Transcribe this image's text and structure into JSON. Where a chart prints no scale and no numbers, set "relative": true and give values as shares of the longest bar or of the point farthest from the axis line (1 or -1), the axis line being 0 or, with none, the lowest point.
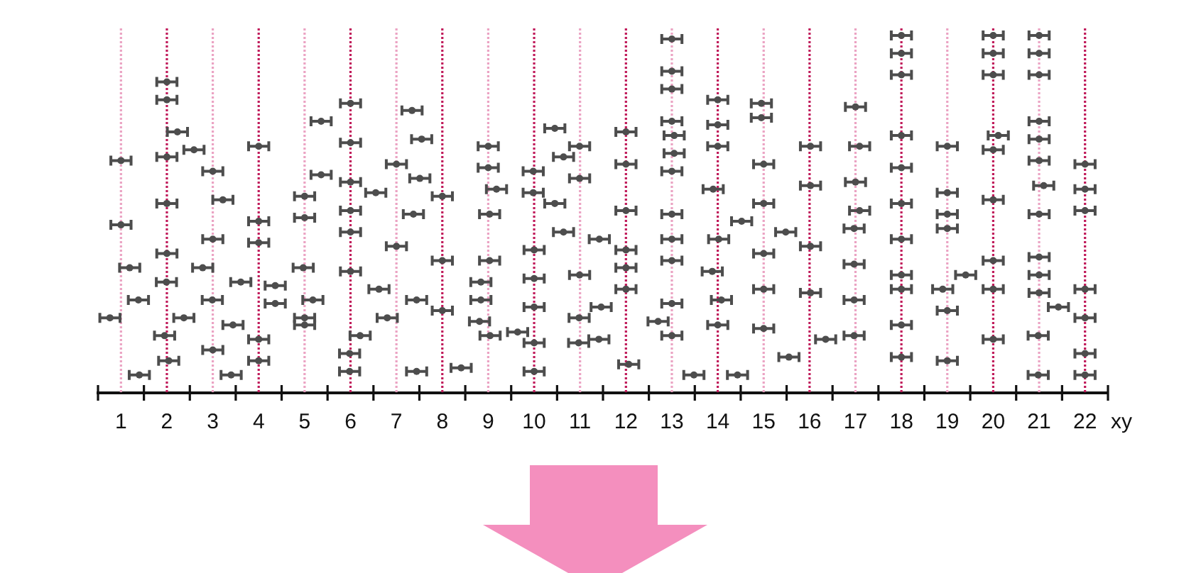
{
  "chart_data": {
    "type": "scatter",
    "relative": true,
    "xlabel": "xy",
    "color": "#4d4d4d",
    "marker": "circle",
    "xlim": [
      0.5,
      22.5
    ],
    "xticks": [
      {
        "value": 0.5,
        "label": null
      },
      1,
      {
        "value": 1.5,
        "label": null
      },
      2,
      {
        "value": 2.5,
        "label": null
      },
      3,
      {
        "value": 3.5,
        "label": null
      },
      4,
      {
        "value": 4.5,
        "label": null
      },
      5,
      {
        "value": 5.5,
        "label": null
      },
      6,
      {
        "value": 6.5,
        "label": null
      },
      7,
      {
        "value": 7.5,
        "label": null
      },
      8,
      {
        "value": 8.5,
        "label": null
      },
      9,
      {
        "value": 9.5,
        "label": null
      },
      10,
      {
        "value": 10.5,
        "label": null
      },
      11,
      {
        "value": 11.5,
        "label": null
      },
      12,
      {
        "value": 12.5,
        "label": null
      },
      13,
      {
        "value": 13.5,
        "label": null
      },
      14,
      {
        "value": 14.5,
        "label": null
      },
      15,
      {
        "value": 15.5,
        "label": null
      },
      16,
      {
        "value": 16.5,
        "label": null
      },
      17,
      {
        "value": 17.5,
        "label": null
      },
      18,
      {
        "value": 18.5,
        "label": null
      },
      19,
      {
        "value": 19.5,
        "label": null
      },
      20,
      {
        "value": 20.5,
        "label": null
      },
      21,
      {
        "value": 21.5,
        "label": null
      },
      22,
      {
        "value": 22.5,
        "label": null
      }
    ],
    "x": [
      1,
      1,
      1.19,
      1.38,
      0.76,
      1.4,
      2,
      2,
      2.23,
      2.59,
      2,
      2,
      2,
      2.78,
      1.99,
      2.37,
      1.95,
      2.04,
      3,
      3.22,
      3,
      3.61,
      2.99,
      3.44,
      3,
      3.4,
      4,
      4,
      4,
      4.36,
      4.36,
      4,
      4,
      5.36,
      5.36,
      5,
      5,
      4.97,
      5.18,
      5,
      5,
      6,
      6,
      6,
      6.55,
      6,
      6,
      6,
      6.62,
      6.8,
      6.21,
      5.98,
      5.98,
      7.34,
      7.55,
      7,
      7.51,
      7.37,
      7,
      7.44,
      7.44,
      8,
      8,
      8,
      8.41,
      9,
      9,
      9.18,
      9.03,
      9.03,
      8.84,
      8.84,
      8.81,
      9.04,
      9.64,
      10.45,
      10.64,
      9.98,
      9.98,
      10.45,
      10.64,
      10,
      10,
      10,
      10,
      10,
      10.99,
      10.99,
      11.42,
      10.99,
      11.46,
      10.98,
      11.41,
      10.97,
      12,
      12,
      12,
      12,
      12,
      12,
      12.7,
      12.06,
      13,
      13,
      13,
      13,
      13.05,
      13.05,
      13,
      13,
      13,
      13,
      13,
      13,
      13.48,
      14,
      14,
      14,
      13.9,
      14.52,
      14.02,
      13.88,
      14.08,
      14,
      14.43,
      14.95,
      14.95,
      15,
      15,
      15.48,
      15,
      15,
      15,
      15.55,
      16.02,
      16.02,
      16.02,
      16.02,
      16.35,
      17,
      17.09,
      17,
      17.09,
      16.97,
      16.97,
      16.97,
      16.97,
      18,
      18,
      18,
      18,
      18,
      18,
      18,
      18,
      18,
      18,
      18,
      19,
      19,
      19,
      19,
      19.4,
      18.9,
      19,
      19,
      20,
      20,
      20,
      20.11,
      20,
      20,
      20,
      20,
      20,
      21,
      21,
      21,
      21,
      21,
      21,
      21.1,
      21,
      21,
      21,
      21,
      21.42,
      20.98,
      20.98,
      22,
      22,
      22,
      22,
      22,
      22,
      22
    ],
    "values": [
      0.65,
      0.47,
      0.35,
      0.26,
      0.21,
      0.05,
      0.87,
      0.82,
      0.73,
      0.68,
      0.66,
      0.53,
      0.39,
      0.35,
      0.31,
      0.21,
      0.16,
      0.09,
      0.62,
      0.54,
      0.43,
      0.31,
      0.26,
      0.19,
      0.12,
      0.05,
      0.69,
      0.48,
      0.42,
      0.3,
      0.25,
      0.15,
      0.09,
      0.76,
      0.61,
      0.55,
      0.49,
      0.35,
      0.26,
      0.21,
      0.19,
      0.81,
      0.7,
      0.59,
      0.56,
      0.51,
      0.45,
      0.34,
      0.29,
      0.21,
      0.16,
      0.11,
      0.06,
      0.79,
      0.71,
      0.64,
      0.6,
      0.5,
      0.41,
      0.26,
      0.06,
      0.55,
      0.37,
      0.23,
      0.07,
      0.69,
      0.63,
      0.57,
      0.5,
      0.37,
      0.31,
      0.26,
      0.2,
      0.16,
      0.17,
      0.74,
      0.66,
      0.62,
      0.56,
      0.53,
      0.45,
      0.4,
      0.32,
      0.24,
      0.14,
      0.06,
      0.69,
      0.6,
      0.43,
      0.33,
      0.24,
      0.21,
      0.15,
      0.14,
      0.73,
      0.64,
      0.51,
      0.4,
      0.35,
      0.29,
      0.2,
      0.08,
      0.99,
      0.9,
      0.85,
      0.76,
      0.72,
      0.67,
      0.62,
      0.5,
      0.43,
      0.37,
      0.25,
      0.16,
      0.05,
      0.82,
      0.75,
      0.69,
      0.57,
      0.48,
      0.43,
      0.34,
      0.26,
      0.19,
      0.05,
      0.81,
      0.77,
      0.64,
      0.53,
      0.45,
      0.39,
      0.29,
      0.18,
      0.1,
      0.69,
      0.58,
      0.41,
      0.28,
      0.15,
      0.8,
      0.69,
      0.59,
      0.51,
      0.46,
      0.36,
      0.26,
      0.16,
      1,
      0.95,
      0.89,
      0.72,
      0.63,
      0.53,
      0.43,
      0.33,
      0.29,
      0.19,
      0.1,
      0.69,
      0.56,
      0.5,
      0.46,
      0.33,
      0.29,
      0.23,
      0.09,
      1,
      0.95,
      0.89,
      0.72,
      0.68,
      0.54,
      0.37,
      0.29,
      0.15,
      1,
      0.95,
      0.89,
      0.76,
      0.71,
      0.65,
      0.58,
      0.5,
      0.38,
      0.33,
      0.28,
      0.24,
      0.16,
      0.05,
      0.64,
      0.57,
      0.51,
      0.29,
      0.21,
      0.11,
      0.05
    ],
    "xerrors": [
      0.22,
      0.22,
      0.22,
      0.22,
      0.22,
      0.22,
      0.22,
      0.22,
      0.22,
      0.22,
      0.22,
      0.22,
      0.22,
      0.22,
      0.22,
      0.22,
      0.22,
      0.22,
      0.22,
      0.22,
      0.22,
      0.22,
      0.22,
      0.22,
      0.22,
      0.22,
      0.22,
      0.22,
      0.22,
      0.22,
      0.22,
      0.22,
      0.22,
      0.22,
      0.22,
      0.22,
      0.22,
      0.22,
      0.22,
      0.22,
      0.22,
      0.22,
      0.22,
      0.22,
      0.22,
      0.22,
      0.22,
      0.22,
      0.22,
      0.22,
      0.22,
      0.22,
      0.22,
      0.22,
      0.22,
      0.22,
      0.22,
      0.22,
      0.22,
      0.22,
      0.22,
      0.22,
      0.22,
      0.22,
      0.22,
      0.22,
      0.22,
      0.22,
      0.22,
      0.22,
      0.22,
      0.22,
      0.22,
      0.22,
      0.22,
      0.22,
      0.22,
      0.22,
      0.22,
      0.22,
      0.22,
      0.22,
      0.22,
      0.22,
      0.22,
      0.22,
      0.22,
      0.22,
      0.22,
      0.22,
      0.22,
      0.22,
      0.22,
      0.22,
      0.22,
      0.22,
      0.22,
      0.22,
      0.22,
      0.22,
      0.22,
      0.22,
      0.22,
      0.22,
      0.22,
      0.22,
      0.22,
      0.22,
      0.22,
      0.22,
      0.22,
      0.22,
      0.22,
      0.22,
      0.22,
      0.22,
      0.22,
      0.22,
      0.22,
      0.22,
      0.22,
      0.22,
      0.22,
      0.22,
      0.22,
      0.22,
      0.22,
      0.22,
      0.22,
      0.22,
      0.22,
      0.22,
      0.22,
      0.22,
      0.22,
      0.22,
      0.22,
      0.22,
      0.22,
      0.22,
      0.22,
      0.22,
      0.22,
      0.22,
      0.22,
      0.22,
      0.22,
      0.22,
      0.22,
      0.22,
      0.22,
      0.22,
      0.22,
      0.22,
      0.22,
      0.22,
      0.22,
      0.22,
      0.22,
      0.22,
      0.22,
      0.22,
      0.22,
      0.22,
      0.22,
      0.22,
      0.22,
      0.22,
      0.22,
      0.22,
      0.22,
      0.22,
      0.22,
      0.22,
      0.22,
      0.22,
      0.22,
      0.22,
      0.22,
      0.22,
      0.22,
      0.22,
      0.22,
      0.22,
      0.22,
      0.22,
      0.22,
      0.22,
      0.22,
      0.22,
      0.22,
      0.22,
      0.22,
      0.22,
      0.22,
      0.22
    ],
    "ref_lines": [
      {
        "axis": "x",
        "value": 1,
        "color": "#eba3c3",
        "line_style": "dotted"
      },
      {
        "axis": "x",
        "value": 2,
        "color": "#c01a5a",
        "line_style": "dotted"
      },
      {
        "axis": "x",
        "value": 3,
        "color": "#eba3c3",
        "line_style": "dotted"
      },
      {
        "axis": "x",
        "value": 4,
        "color": "#c01a5a",
        "line_style": "dotted"
      },
      {
        "axis": "x",
        "value": 5,
        "color": "#eba3c3",
        "line_style": "dotted"
      },
      {
        "axis": "x",
        "value": 6,
        "color": "#c01a5a",
        "line_style": "dotted"
      },
      {
        "axis": "x",
        "value": 7,
        "color": "#eba3c3",
        "line_style": "dotted"
      },
      {
        "axis": "x",
        "value": 8,
        "color": "#c01a5a",
        "line_style": "dotted"
      },
      {
        "axis": "x",
        "value": 9,
        "color": "#eba3c3",
        "line_style": "dotted"
      },
      {
        "axis": "x",
        "value": 10,
        "color": "#c01a5a",
        "line_style": "dotted"
      },
      {
        "axis": "x",
        "value": 11,
        "color": "#eba3c3",
        "line_style": "dotted"
      },
      {
        "axis": "x",
        "value": 12,
        "color": "#c01a5a",
        "line_style": "dotted"
      },
      {
        "axis": "x",
        "value": 13,
        "color": "#eba3c3",
        "line_style": "dotted"
      },
      {
        "axis": "x",
        "value": 14,
        "color": "#c01a5a",
        "line_style": "dotted"
      },
      {
        "axis": "x",
        "value": 15,
        "color": "#eba3c3",
        "line_style": "dotted"
      },
      {
        "axis": "x",
        "value": 16,
        "color": "#c01a5a",
        "line_style": "dotted"
      },
      {
        "axis": "x",
        "value": 17,
        "color": "#eba3c3",
        "line_style": "dotted"
      },
      {
        "axis": "x",
        "value": 18,
        "color": "#c01a5a",
        "line_style": "dotted"
      },
      {
        "axis": "x",
        "value": 19,
        "color": "#eba3c3",
        "line_style": "dotted"
      },
      {
        "axis": "x",
        "value": 20,
        "color": "#c01a5a",
        "line_style": "dotted"
      },
      {
        "axis": "x",
        "value": 21,
        "color": "#eba3c3",
        "line_style": "dotted"
      },
      {
        "axis": "x",
        "value": 22,
        "color": "#c01a5a",
        "line_style": "dotted"
      }
    ]
  }
}
